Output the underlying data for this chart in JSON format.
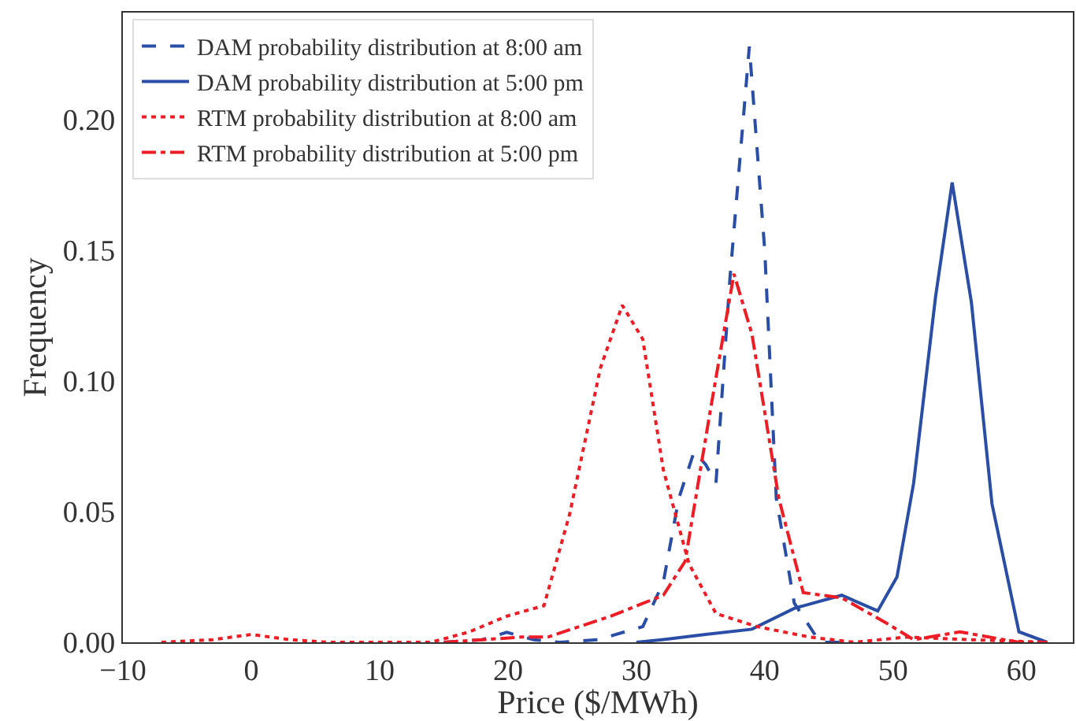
{
  "chart_data": {
    "type": "line",
    "xlabel": "Price ($/MWh)",
    "ylabel": "Frequency",
    "xlim": [
      -10,
      64
    ],
    "xticks": [
      -10,
      0,
      10,
      20,
      30,
      40,
      50,
      60
    ],
    "ylim": [
      0,
      0.241
    ],
    "yticks": [
      {
        "value": 0,
        "label": "0.00"
      },
      {
        "value": 0.05,
        "label": "0.05"
      },
      {
        "value": 0.1,
        "label": "0.10"
      },
      {
        "value": 0.15,
        "label": "0.15"
      },
      {
        "value": 0.2,
        "label": "0.20"
      }
    ],
    "grid": false,
    "legend": "top left",
    "marker": "none",
    "series": [
      {
        "name": "DAM probability distribution at 8:00 am",
        "color": "#2a4ea6",
        "line_style": "dashed",
        "x": [
          15,
          18,
          19.9,
          22,
          24,
          27,
          30.5,
          32.1,
          33.3,
          34.5,
          35.4,
          36.2,
          37.3,
          38.8,
          40.0,
          40.9,
          42.3,
          44.3,
          46
        ],
        "values": [
          0,
          0.001,
          0.0038,
          0.001,
          0,
          0.001,
          0.006,
          0.023,
          0.055,
          0.073,
          0.068,
          0.061,
          0.14,
          0.228,
          0.15,
          0.055,
          0.015,
          0,
          0
        ]
      },
      {
        "name": "DAM probability distribution at 5:00 pm",
        "color": "#2a4ea6",
        "line_style": "solid",
        "x": [
          30,
          32,
          35.4,
          39,
          42.3,
          46,
          48.8,
          50.3,
          51.6,
          53.3,
          54.6,
          56.1,
          57.7,
          59.8,
          62
        ],
        "values": [
          0,
          0.001,
          0.003,
          0.005,
          0.013,
          0.018,
          0.012,
          0.025,
          0.061,
          0.132,
          0.176,
          0.13,
          0.053,
          0.004,
          0
        ]
      },
      {
        "name": "RTM probability distribution at 8:00 am",
        "color": "#ee1c25",
        "line_style": "dotted",
        "x": [
          -7,
          -3,
          0,
          3,
          6,
          10,
          14,
          17,
          19.9,
          22.8,
          24.8,
          27.2,
          28.9,
          30.5,
          32.1,
          34.1,
          36.2,
          39.4,
          43.5,
          47,
          51,
          56,
          62
        ],
        "values": [
          0,
          0.001,
          0.003,
          0.001,
          0,
          0,
          0,
          0.004,
          0.01,
          0.014,
          0.049,
          0.105,
          0.129,
          0.116,
          0.066,
          0.03,
          0.011,
          0.006,
          0.002,
          0,
          0.002,
          0.001,
          0
        ]
      },
      {
        "name": "RTM probability distribution at 5:00 pm",
        "color": "#ee1c25",
        "line_style": "dashdot",
        "x": [
          15,
          21.1,
          23.1,
          28,
          32.1,
          33.8,
          35.7,
          37.6,
          39,
          41.1,
          43,
          46,
          49.6,
          51.6,
          55.2,
          59.8,
          62
        ],
        "values": [
          0,
          0.002,
          0.002,
          0.01,
          0.018,
          0.031,
          0.087,
          0.141,
          0.118,
          0.055,
          0.019,
          0.017,
          0.007,
          0.001,
          0.004,
          0,
          0
        ]
      }
    ]
  }
}
